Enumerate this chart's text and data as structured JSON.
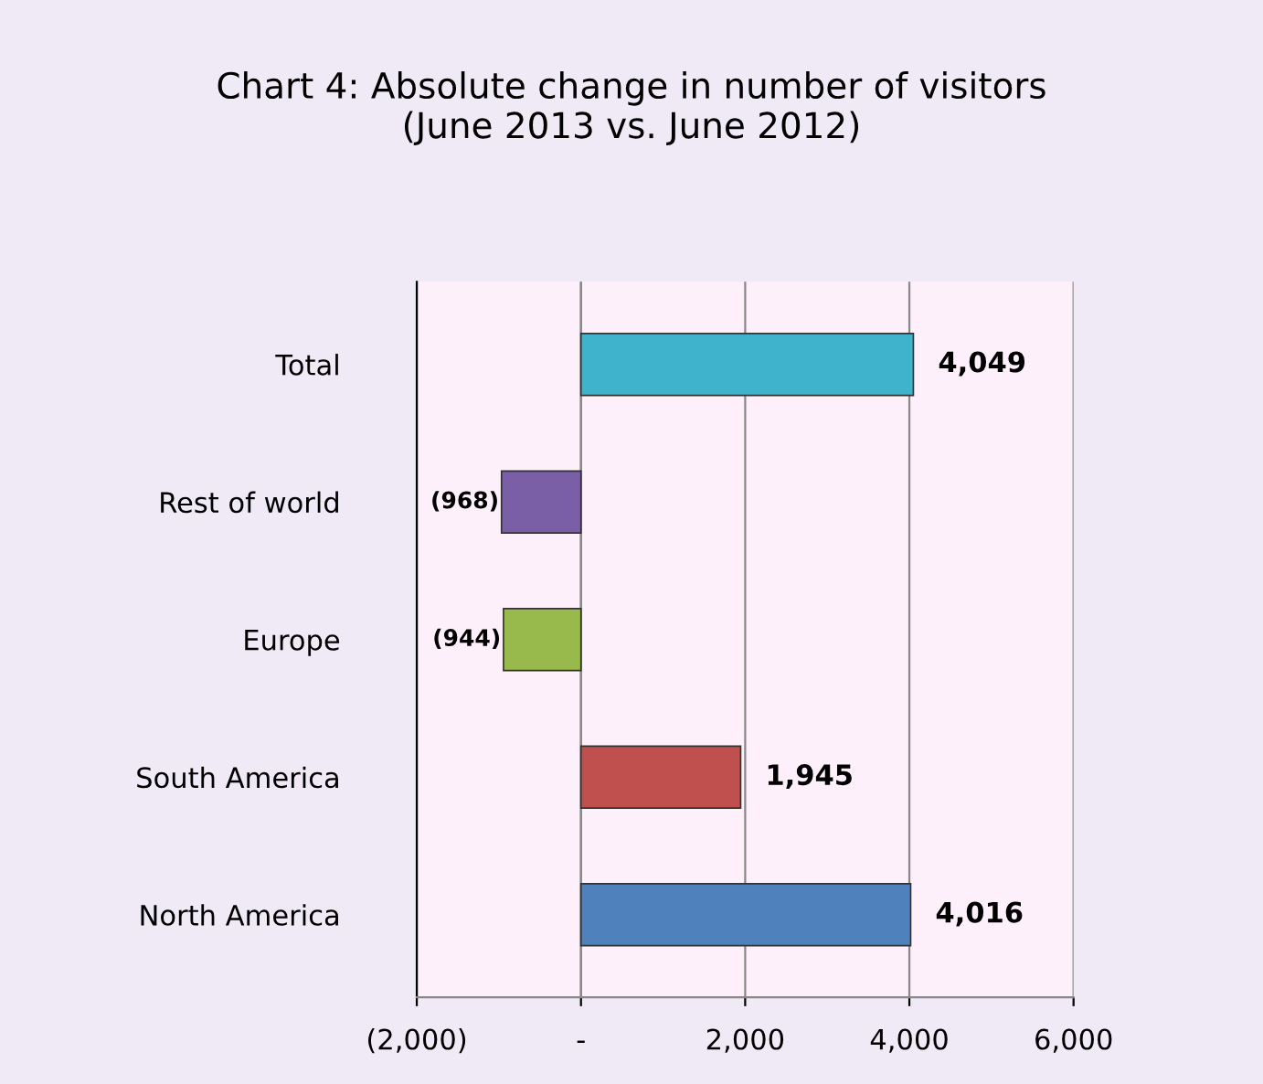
{
  "chart_data": {
    "type": "bar",
    "orientation": "horizontal",
    "title": "Chart 4: Absolute change in number of visitors\n(June 2013 vs. June 2012)",
    "categories": [
      "Total",
      "Rest of world",
      "Europe",
      "South America",
      "North America"
    ],
    "values": [
      4049,
      -968,
      -944,
      1945,
      4016
    ],
    "colors": [
      "#3fb3cc",
      "#7b5fa6",
      "#98b94b",
      "#c0504d",
      "#4f81bd"
    ],
    "value_labels": [
      "4,049",
      "(968)",
      "(944)",
      "1,945",
      "4,016"
    ],
    "xlim": [
      -2000,
      6000
    ],
    "xticks": [
      {
        "value": -2000,
        "label": "(2,000)"
      },
      {
        "value": 0,
        "label": "-"
      },
      {
        "value": 2000,
        "label": "2,000"
      },
      {
        "value": 4000,
        "label": "4,000"
      },
      {
        "value": 6000,
        "label": "6,000"
      }
    ],
    "grid": "x",
    "legend": false
  }
}
